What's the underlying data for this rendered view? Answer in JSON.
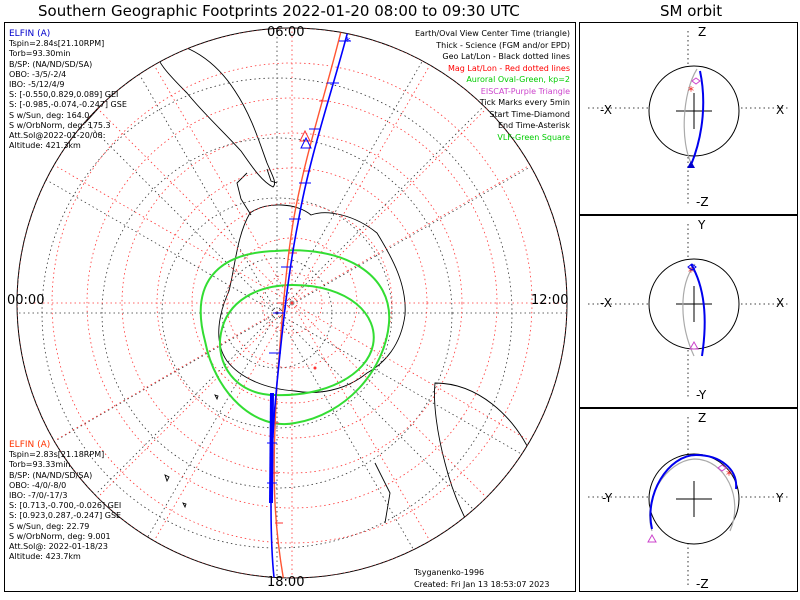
{
  "title": "Southern Geographic Footprints 2022-01-20 08:00 to 09:30 UTC",
  "sm_title": "SM orbit",
  "clock_labels": {
    "top": "06:00",
    "left": "00:00",
    "right": "12:00",
    "bottom": "18:00"
  },
  "elfin_a_blue": {
    "name": "ELFIN (A)",
    "lines": [
      "Tspin=2.84s[21.10RPM]",
      "Torb=93.30min",
      "B/SP: (NA/ND/SD/SA)",
      "OBO: -3/5/-2/4",
      "IBO: -5/12/4/9",
      "S: [-0.550,0.829,0.089] GEI",
      "S: [-0.985,-0.074,-0.247] GSE",
      "S w/Sun, deg: 164.0",
      "S w/OrbNorm, deg: 175.3",
      "Att.Sol@2022-01-20/08:",
      "Altitude: 421.3km"
    ],
    "color": "#0000cc"
  },
  "elfin_a_red": {
    "name": "ELFIN (A)",
    "lines": [
      "Tspin=2.83s[21.18RPM]",
      "Torb=93.33min",
      "B/SP: (NA/ND/SD/SA)",
      "OBO: -4/0/-8/0",
      "IBO: -7/0/-17/3",
      "S: [0.713,-0.700,-0.026] GEI",
      "S: [0.923,0.287,-0.247] GSE",
      "S w/Sun, deg: 22.79",
      "S w/OrbNorm, deg: 9.001",
      "Att.Sol@: 2022-01-18/23",
      "Altitude: 423.7km"
    ],
    "color": "#ff3300"
  },
  "legend": [
    {
      "text": "Earth/Oval View Center Time (triangle)",
      "color": "#000000"
    },
    {
      "text": "Thick - Science (FGM and/or EPD)",
      "color": "#000000"
    },
    {
      "text": "Geo Lat/Lon - Black dotted lines",
      "color": "#000000"
    },
    {
      "text": "Mag Lat/Lon - Red dotted lines",
      "color": "#ff0000"
    },
    {
      "text": "Auroral Oval-Green, kp=2",
      "color": "#00cc00"
    },
    {
      "text": "EISCAT-Purple Triangle",
      "color": "#cc44cc"
    },
    {
      "text": "Tick Marks every 5min",
      "color": "#000000"
    },
    {
      "text": "Start Time-Diamond",
      "color": "#000000"
    },
    {
      "text": "End Time-Asterisk",
      "color": "#000000"
    },
    {
      "text": "VLF-Green Square",
      "color": "#00cc00"
    }
  ],
  "footer": {
    "model": "Tsyganenko-1996",
    "created": "Created: Fri Jan 13 18:53:07 2023"
  },
  "sm_panels": [
    {
      "top": "Z",
      "bottom": "-Z",
      "left": "-X",
      "right": "X"
    },
    {
      "top": "Y",
      "bottom": "-Y",
      "left": "-X",
      "right": "X"
    },
    {
      "top": "Z",
      "bottom": "-Z",
      "left": "-Y",
      "right": "Y"
    }
  ],
  "colors": {
    "blue_track": "#0000ff",
    "red_track": "#ff5533",
    "oval": "#33dd33",
    "grid_red": "#ff3333",
    "grid_black": "#333333"
  }
}
